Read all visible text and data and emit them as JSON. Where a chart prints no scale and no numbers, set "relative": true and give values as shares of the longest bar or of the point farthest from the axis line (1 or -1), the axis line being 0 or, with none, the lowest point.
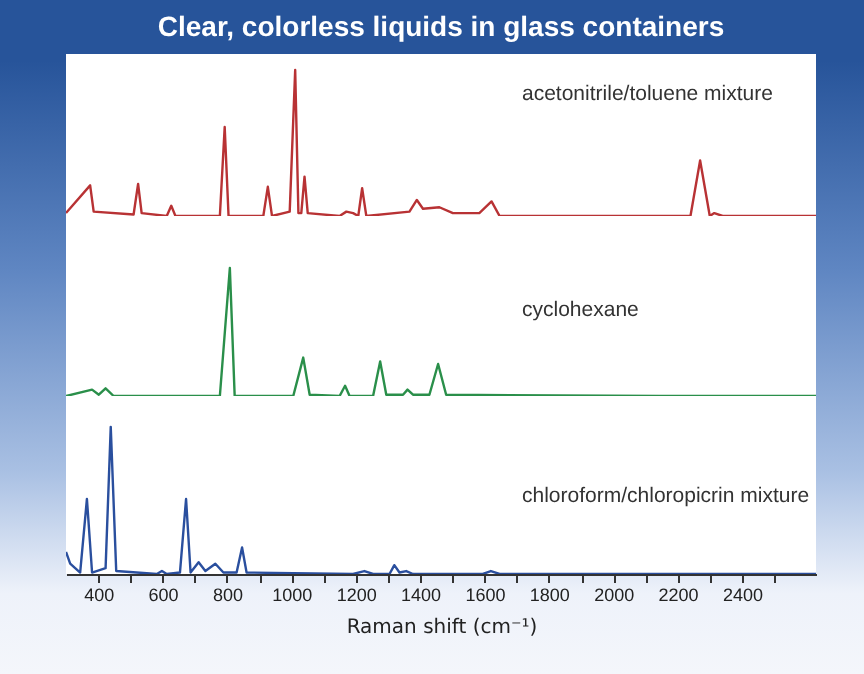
{
  "chart_data": [
    {
      "type": "line",
      "title": "Clear, colorless liquids in glass containers",
      "relative": true,
      "tick_labels": false,
      "xlim": [
        300,
        2630
      ],
      "series": [
        {
          "name": "acetonitrile/toluene mixture",
          "color": "#b83234",
          "x": [
            300,
            375,
            386,
            510,
            524,
            535,
            613,
            627,
            640,
            778,
            793,
            805,
            913,
            927,
            940,
            995,
            1012,
            1022,
            1031,
            1041,
            1051,
            1150,
            1171,
            1192,
            1208,
            1220,
            1233,
            1367,
            1390,
            1409,
            1460,
            1502,
            1584,
            1622,
            1647,
            1709,
            2143,
            2240,
            2270,
            2300,
            2314,
            2340,
            2630
          ],
          "values": [
            0.02,
            0.21,
            0.03,
            0.01,
            0.22,
            0.02,
            0,
            0.07,
            0,
            0,
            0.61,
            0,
            0,
            0.2,
            0,
            0.03,
            1,
            0.02,
            0.02,
            0.27,
            0.02,
            0,
            0.03,
            0.02,
            0,
            0.19,
            0,
            0.03,
            0.11,
            0.05,
            0.06,
            0.02,
            0.02,
            0.1,
            0,
            0,
            0,
            0,
            0.38,
            0,
            0.02,
            0,
            0
          ]
        }
      ]
    },
    {
      "type": "line",
      "relative": true,
      "tick_labels": false,
      "xlim": [
        300,
        2630
      ],
      "series": [
        {
          "name": "cyclohexane",
          "color": "#2a8f4a",
          "x": [
            300,
            381,
            402,
            423,
            448,
            778,
            809,
            824,
            1006,
            1037,
            1057,
            1150,
            1167,
            1181,
            1254,
            1276,
            1295,
            1347,
            1361,
            1378,
            1429,
            1456,
            1481,
            2143,
            2630
          ],
          "values": [
            0,
            0.05,
            0.01,
            0.06,
            0,
            0,
            1,
            0,
            0,
            0.3,
            0.01,
            0,
            0.08,
            0,
            0,
            0.27,
            0.01,
            0.01,
            0.05,
            0.01,
            0.01,
            0.25,
            0.01,
            0,
            0
          ]
        }
      ]
    },
    {
      "type": "line",
      "xlabel": "Raman shift (cm⁻¹)",
      "relative": true,
      "tick_labels": "x",
      "xlim": [
        300,
        2630
      ],
      "xticks": [
        400,
        {
          "value": 500,
          "label": null
        },
        600,
        {
          "value": 700,
          "label": null
        },
        800,
        {
          "value": 900,
          "label": null
        },
        1000,
        {
          "value": 1100,
          "label": null
        },
        1200,
        {
          "value": 1300,
          "label": null
        },
        1400,
        {
          "value": 1500,
          "label": null
        },
        1600,
        {
          "value": 1700,
          "label": null
        },
        1800,
        {
          "value": 1900,
          "label": null
        },
        2000,
        {
          "value": 2100,
          "label": null
        },
        2200,
        {
          "value": 2300,
          "label": null
        },
        2400,
        {
          "value": 2500,
          "label": null
        }
      ],
      "series": [
        {
          "name": "chloroform/chloropicrin mixture",
          "color": "#2a4f9e",
          "x": [
            300,
            313,
            344,
            365,
            381,
            423,
            439,
            456,
            582,
            598,
            613,
            654,
            673,
            687,
            712,
            733,
            764,
            789,
            830,
            847,
            861,
            1192,
            1227,
            1254,
            1305,
            1320,
            1336,
            1357,
            1378,
            1595,
            1620,
            1647,
            2143,
            2630
          ],
          "values": [
            0.15,
            0.07,
            0.01,
            0.51,
            0.01,
            0.04,
            1,
            0.02,
            0,
            0.02,
            0,
            0.01,
            0.51,
            0.01,
            0.08,
            0.02,
            0.07,
            0.01,
            0.01,
            0.18,
            0.01,
            0,
            0.02,
            0,
            0,
            0.06,
            0.01,
            0.02,
            0,
            0,
            0.02,
            0,
            0,
            0
          ]
        }
      ]
    }
  ]
}
